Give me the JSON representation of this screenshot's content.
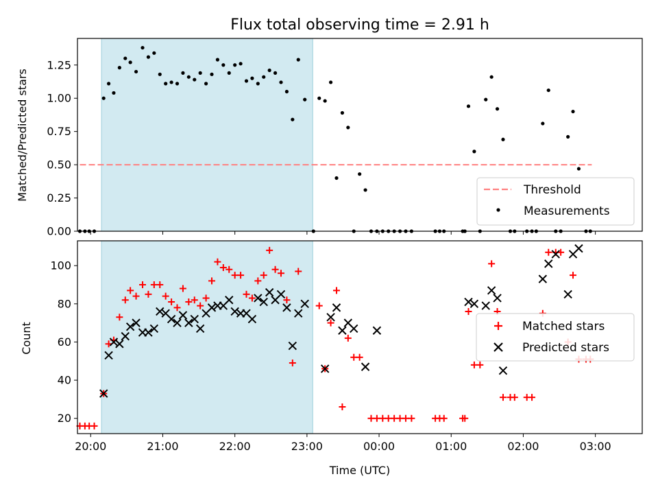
{
  "chart_data": [
    {
      "type": "scatter",
      "title": "Flux total observing time = 2.91 h",
      "xlabel": "",
      "ylabel": "Matched/Predicted stars",
      "xlim_hours": [
        19.8167,
        27.65
      ],
      "ylim": [
        0,
        1.45
      ],
      "y_ticks": [
        0.0,
        0.25,
        0.5,
        0.75,
        1.0,
        1.25
      ],
      "y_tick_labels": [
        "0.00",
        "0.25",
        "0.50",
        "0.75",
        "1.00",
        "1.25"
      ],
      "shaded_span_hours": [
        20.15,
        23.08
      ],
      "shaded_color": "#add8e6",
      "threshold": {
        "name": "Threshold",
        "y": 0.5,
        "x_range_hours": [
          19.85,
          26.95
        ],
        "color": "#ff7f7f"
      },
      "legend": {
        "position": "lower-right",
        "entries": [
          "Threshold",
          "Measurements"
        ]
      },
      "series": [
        {
          "name": "Measurements",
          "color": "#000000",
          "marker": "dot",
          "points": [
            [
              19.85,
              0
            ],
            [
              19.92,
              0
            ],
            [
              19.98,
              0
            ],
            [
              20.05,
              0
            ],
            [
              20.18,
              1.0
            ],
            [
              20.25,
              1.11
            ],
            [
              20.32,
              1.04
            ],
            [
              20.4,
              1.23
            ],
            [
              20.48,
              1.3
            ],
            [
              20.55,
              1.27
            ],
            [
              20.63,
              1.2
            ],
            [
              20.72,
              1.38
            ],
            [
              20.8,
              1.31
            ],
            [
              20.88,
              1.34
            ],
            [
              20.96,
              1.18
            ],
            [
              21.04,
              1.11
            ],
            [
              21.12,
              1.12
            ],
            [
              21.2,
              1.11
            ],
            [
              21.28,
              1.19
            ],
            [
              21.36,
              1.16
            ],
            [
              21.44,
              1.14
            ],
            [
              21.52,
              1.19
            ],
            [
              21.6,
              1.11
            ],
            [
              21.68,
              1.18
            ],
            [
              21.76,
              1.29
            ],
            [
              21.84,
              1.25
            ],
            [
              21.92,
              1.19
            ],
            [
              22.0,
              1.25
            ],
            [
              22.08,
              1.26
            ],
            [
              22.16,
              1.13
            ],
            [
              22.24,
              1.15
            ],
            [
              22.32,
              1.11
            ],
            [
              22.4,
              1.16
            ],
            [
              22.48,
              1.21
            ],
            [
              22.56,
              1.19
            ],
            [
              22.64,
              1.12
            ],
            [
              22.72,
              1.05
            ],
            [
              22.8,
              0.84
            ],
            [
              22.88,
              1.29
            ],
            [
              22.97,
              0.99
            ],
            [
              23.09,
              0
            ],
            [
              23.17,
              1.0
            ],
            [
              23.25,
              0.98
            ],
            [
              23.33,
              1.12
            ],
            [
              23.41,
              0.4
            ],
            [
              23.49,
              0.89
            ],
            [
              23.57,
              0.78
            ],
            [
              23.65,
              0
            ],
            [
              23.73,
              0.43
            ],
            [
              23.81,
              0.31
            ],
            [
              23.89,
              0
            ],
            [
              23.97,
              0
            ],
            [
              24.05,
              0
            ],
            [
              24.13,
              0
            ],
            [
              24.21,
              0
            ],
            [
              24.29,
              0
            ],
            [
              24.37,
              0
            ],
            [
              24.45,
              0
            ],
            [
              24.78,
              0
            ],
            [
              24.84,
              0
            ],
            [
              24.9,
              0
            ],
            [
              25.16,
              0
            ],
            [
              25.19,
              0
            ],
            [
              25.24,
              0.94
            ],
            [
              25.32,
              0.6
            ],
            [
              25.4,
              0
            ],
            [
              25.48,
              0.99
            ],
            [
              25.56,
              1.16
            ],
            [
              25.64,
              0.92
            ],
            [
              25.72,
              0.69
            ],
            [
              25.82,
              0
            ],
            [
              25.88,
              0
            ],
            [
              26.05,
              0
            ],
            [
              26.12,
              0
            ],
            [
              26.18,
              0
            ],
            [
              26.27,
              0.81
            ],
            [
              26.35,
              1.06
            ],
            [
              26.45,
              0
            ],
            [
              26.52,
              0
            ],
            [
              26.62,
              0.71
            ],
            [
              26.69,
              0.9
            ],
            [
              26.77,
              0.47
            ],
            [
              26.87,
              0
            ],
            [
              26.93,
              0
            ]
          ]
        }
      ]
    },
    {
      "type": "scatter",
      "title": "",
      "xlabel": "Time (UTC)",
      "ylabel": "Count",
      "xlim_hours": [
        19.8167,
        27.65
      ],
      "ylim": [
        12,
        113
      ],
      "y_ticks": [
        20,
        40,
        60,
        80,
        100
      ],
      "y_tick_labels": [
        "20",
        "40",
        "60",
        "80",
        "100"
      ],
      "x_ticks_hours": [
        20,
        21,
        22,
        23,
        24,
        25,
        26,
        27
      ],
      "x_tick_labels": [
        "20:00",
        "21:00",
        "22:00",
        "23:00",
        "00:00",
        "01:00",
        "02:00",
        "03:00"
      ],
      "shaded_span_hours": [
        20.15,
        23.08
      ],
      "shaded_color": "#add8e6",
      "legend": {
        "position": "center-right",
        "entries": [
          "Matched stars",
          "Predicted stars"
        ]
      },
      "series": [
        {
          "name": "Matched stars",
          "color": "#ff0000",
          "marker": "plus",
          "points": [
            [
              19.85,
              16
            ],
            [
              19.92,
              16
            ],
            [
              19.98,
              16
            ],
            [
              20.05,
              16
            ],
            [
              20.18,
              33
            ],
            [
              20.25,
              59
            ],
            [
              20.32,
              61
            ],
            [
              20.4,
              73
            ],
            [
              20.48,
              82
            ],
            [
              20.55,
              87
            ],
            [
              20.63,
              84
            ],
            [
              20.72,
              90
            ],
            [
              20.8,
              85
            ],
            [
              20.88,
              90
            ],
            [
              20.96,
              90
            ],
            [
              21.04,
              84
            ],
            [
              21.12,
              81
            ],
            [
              21.2,
              78
            ],
            [
              21.28,
              88
            ],
            [
              21.36,
              81
            ],
            [
              21.44,
              82
            ],
            [
              21.52,
              79
            ],
            [
              21.6,
              83
            ],
            [
              21.68,
              92
            ],
            [
              21.76,
              102
            ],
            [
              21.84,
              99
            ],
            [
              21.92,
              98
            ],
            [
              22.0,
              95
            ],
            [
              22.08,
              95
            ],
            [
              22.16,
              85
            ],
            [
              22.24,
              83
            ],
            [
              22.32,
              92
            ],
            [
              22.4,
              95
            ],
            [
              22.48,
              108
            ],
            [
              22.56,
              98
            ],
            [
              22.64,
              96
            ],
            [
              22.72,
              82
            ],
            [
              22.8,
              49
            ],
            [
              22.88,
              97
            ],
            [
              23.17,
              79
            ],
            [
              23.25,
              46
            ],
            [
              23.33,
              70
            ],
            [
              23.41,
              87
            ],
            [
              23.49,
              26
            ],
            [
              23.57,
              62
            ],
            [
              23.65,
              52
            ],
            [
              23.73,
              52
            ],
            [
              23.89,
              20
            ],
            [
              23.97,
              20
            ],
            [
              24.05,
              20
            ],
            [
              24.13,
              20
            ],
            [
              24.21,
              20
            ],
            [
              24.29,
              20
            ],
            [
              24.37,
              20
            ],
            [
              24.45,
              20
            ],
            [
              24.78,
              20
            ],
            [
              24.84,
              20
            ],
            [
              24.9,
              20
            ],
            [
              25.16,
              20
            ],
            [
              25.19,
              20
            ],
            [
              25.24,
              76
            ],
            [
              25.32,
              48
            ],
            [
              25.4,
              48
            ],
            [
              25.56,
              101
            ],
            [
              25.64,
              76
            ],
            [
              25.72,
              31
            ],
            [
              25.82,
              31
            ],
            [
              25.88,
              31
            ],
            [
              26.05,
              31
            ],
            [
              26.12,
              31
            ],
            [
              26.27,
              75
            ],
            [
              26.35,
              107
            ],
            [
              26.45,
              107
            ],
            [
              26.52,
              107
            ],
            [
              26.62,
              60
            ],
            [
              26.69,
              95
            ],
            [
              26.77,
              51
            ],
            [
              26.87,
              51
            ],
            [
              26.93,
              51
            ]
          ]
        },
        {
          "name": "Predicted stars",
          "color": "#000000",
          "marker": "x",
          "points": [
            [
              20.18,
              33
            ],
            [
              20.25,
              53
            ],
            [
              20.32,
              60
            ],
            [
              20.4,
              59
            ],
            [
              20.48,
              63
            ],
            [
              20.55,
              68
            ],
            [
              20.63,
              70
            ],
            [
              20.72,
              65
            ],
            [
              20.8,
              65
            ],
            [
              20.88,
              67
            ],
            [
              20.96,
              76
            ],
            [
              21.04,
              75
            ],
            [
              21.12,
              72
            ],
            [
              21.2,
              70
            ],
            [
              21.28,
              74
            ],
            [
              21.36,
              70
            ],
            [
              21.44,
              72
            ],
            [
              21.52,
              67
            ],
            [
              21.6,
              75
            ],
            [
              21.68,
              78
            ],
            [
              21.76,
              79
            ],
            [
              21.84,
              79
            ],
            [
              21.92,
              82
            ],
            [
              22.0,
              76
            ],
            [
              22.08,
              75
            ],
            [
              22.16,
              75
            ],
            [
              22.24,
              72
            ],
            [
              22.32,
              83
            ],
            [
              22.4,
              81
            ],
            [
              22.48,
              86
            ],
            [
              22.56,
              82
            ],
            [
              22.64,
              85
            ],
            [
              22.72,
              78
            ],
            [
              22.8,
              58
            ],
            [
              22.88,
              75
            ],
            [
              22.97,
              80
            ],
            [
              23.25,
              46
            ],
            [
              23.33,
              73
            ],
            [
              23.41,
              78
            ],
            [
              23.49,
              66
            ],
            [
              23.57,
              70
            ],
            [
              23.65,
              67
            ],
            [
              23.81,
              47
            ],
            [
              23.97,
              66
            ],
            [
              25.24,
              81
            ],
            [
              25.32,
              80
            ],
            [
              25.48,
              79
            ],
            [
              25.56,
              87
            ],
            [
              25.64,
              83
            ],
            [
              25.72,
              45
            ],
            [
              26.27,
              93
            ],
            [
              26.35,
              101
            ],
            [
              26.45,
              106
            ],
            [
              26.62,
              85
            ],
            [
              26.69,
              106
            ],
            [
              26.77,
              109
            ]
          ]
        }
      ]
    }
  ]
}
